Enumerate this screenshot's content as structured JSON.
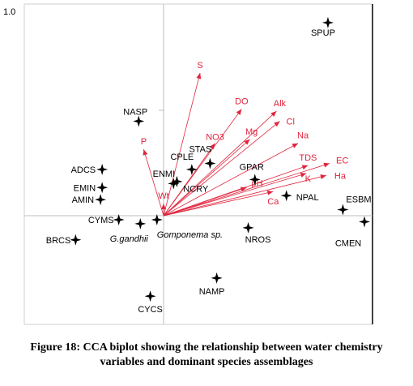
{
  "chart_data": {
    "type": "scatter",
    "title": "",
    "xlabel": "",
    "ylabel": "",
    "y_axis_max_label": "1.0",
    "xlim": [
      -1.0,
      1.3
    ],
    "ylim": [
      -0.55,
      1.05
    ],
    "species": [
      {
        "label": "SPUP",
        "x": 0.99,
        "y": 0.96
      },
      {
        "label": "NASP",
        "x": -0.15,
        "y": 0.47
      },
      {
        "label": "STAS",
        "x": 0.28,
        "y": 0.26
      },
      {
        "label": "CPLE",
        "x": 0.17,
        "y": 0.23
      },
      {
        "label": "ENMI",
        "x": 0.08,
        "y": 0.17
      },
      {
        "label": "NCRY",
        "x": 0.06,
        "y": 0.16
      },
      {
        "label": "GPAR",
        "x": 0.55,
        "y": 0.18
      },
      {
        "label": "NPAL",
        "x": 0.74,
        "y": 0.1
      },
      {
        "label": "ESBM",
        "x": 1.08,
        "y": 0.03
      },
      {
        "label": "CMEN",
        "x": 1.21,
        "y": -0.03
      },
      {
        "label": "ADCS",
        "x": -0.37,
        "y": 0.23
      },
      {
        "label": "EMIN",
        "x": -0.37,
        "y": 0.14
      },
      {
        "label": "AMIN",
        "x": -0.38,
        "y": 0.08
      },
      {
        "label": "CYMS",
        "x": -0.27,
        "y": -0.02
      },
      {
        "label": "G.gandhii",
        "x": -0.14,
        "y": -0.04
      },
      {
        "label": "Gomponema sp.",
        "x": -0.04,
        "y": -0.02
      },
      {
        "label": "BRCS",
        "x": -0.53,
        "y": -0.12
      },
      {
        "label": "NROS",
        "x": 0.51,
        "y": -0.06
      },
      {
        "label": "NAMP",
        "x": 0.32,
        "y": -0.31
      },
      {
        "label": "CYCS",
        "x": -0.08,
        "y": -0.4
      }
    ],
    "environmental_vectors": [
      {
        "label": "S",
        "x": 0.22,
        "y": 0.71
      },
      {
        "label": "DO",
        "x": 0.47,
        "y": 0.53
      },
      {
        "label": "Alk",
        "x": 0.68,
        "y": 0.52
      },
      {
        "label": "Cl",
        "x": 0.7,
        "y": 0.47
      },
      {
        "label": "NO3",
        "x": 0.31,
        "y": 0.36
      },
      {
        "label": "Mg",
        "x": 0.52,
        "y": 0.38
      },
      {
        "label": "Na",
        "x": 0.81,
        "y": 0.36
      },
      {
        "label": "TDS",
        "x": 0.87,
        "y": 0.25
      },
      {
        "label": "EC",
        "x": 1.0,
        "y": 0.26
      },
      {
        "label": "K",
        "x": 0.86,
        "y": 0.21
      },
      {
        "label": "Ha",
        "x": 0.98,
        "y": 0.2
      },
      {
        "label": "pH",
        "x": 0.5,
        "y": 0.14
      },
      {
        "label": "Ca",
        "x": 0.66,
        "y": 0.12
      },
      {
        "label": "P",
        "x": -0.12,
        "y": 0.33
      },
      {
        "label": "Wt",
        "x": 0.0,
        "y": 0.06
      }
    ],
    "colors": {
      "species": "#000000",
      "vectors": "#e0243c"
    }
  },
  "caption": {
    "line1": "Figure 18: CCA biplot showing the relationship between water chemistry",
    "line2": "variables and dominant species assemblages"
  }
}
